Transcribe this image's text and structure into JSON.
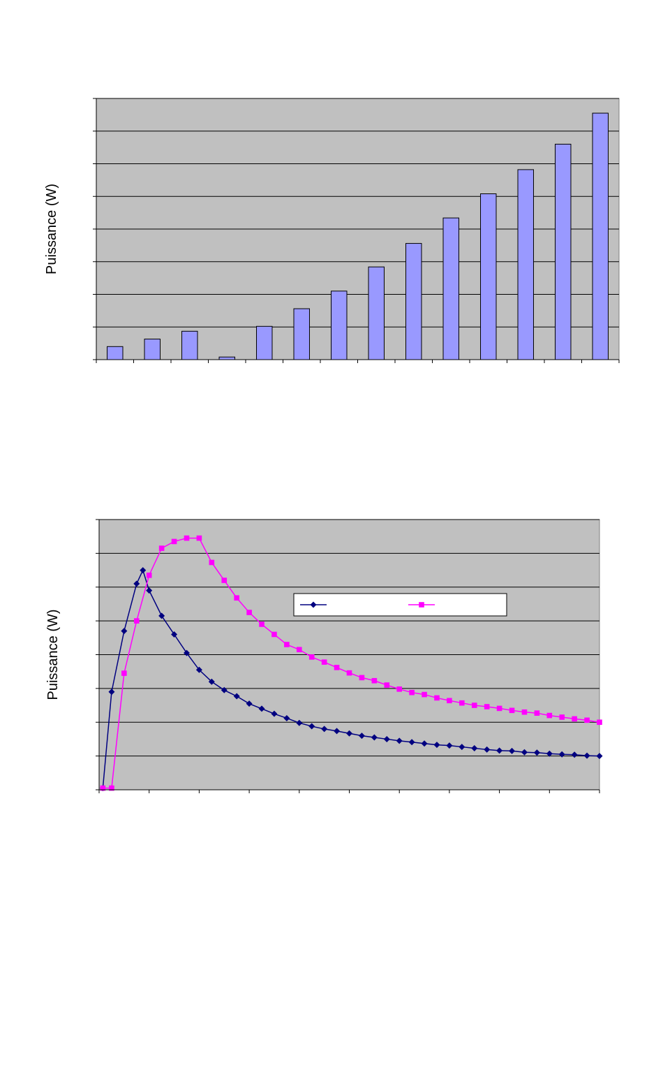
{
  "chart_data": [
    {
      "type": "bar",
      "ylabel": "Puissance (W)",
      "title": "",
      "xlabel": "",
      "ylim": [
        0,
        8
      ],
      "grid": true,
      "colors": {
        "plot_bg": "#c0c0c0",
        "bar": "#9999ff",
        "bar_edge": "#000000"
      },
      "values": [
        0.4,
        0.63,
        0.87,
        0.08,
        1.02,
        1.56,
        2.1,
        2.84,
        3.56,
        4.34,
        5.08,
        5.82,
        6.6,
        7.55
      ]
    },
    {
      "type": "line",
      "ylabel": "Puissance (W)",
      "title": "",
      "xlabel": "",
      "ylim": [
        0,
        8
      ],
      "xlim": [
        0,
        40
      ],
      "grid": true,
      "legend": "inside-top-right",
      "colors": {
        "plot_bg": "#c0c0c0"
      },
      "series": [
        {
          "name": "",
          "color": "#000080",
          "marker": "diamond",
          "x": [
            0.3,
            1,
            2,
            3,
            3.5,
            4,
            5,
            6,
            7,
            8,
            9,
            10,
            11,
            12,
            13,
            14,
            15,
            16,
            17,
            18,
            19,
            20,
            21,
            22,
            23,
            24,
            25,
            26,
            27,
            28,
            29,
            30,
            31,
            32,
            33,
            34,
            35,
            36,
            37,
            38,
            39,
            40
          ],
          "values": [
            0.05,
            2.9,
            4.7,
            6.1,
            6.5,
            5.9,
            5.15,
            4.6,
            4.05,
            3.55,
            3.2,
            2.95,
            2.77,
            2.55,
            2.4,
            2.25,
            2.12,
            1.98,
            1.88,
            1.8,
            1.74,
            1.67,
            1.6,
            1.55,
            1.5,
            1.45,
            1.41,
            1.37,
            1.33,
            1.31,
            1.27,
            1.23,
            1.19,
            1.16,
            1.15,
            1.11,
            1.1,
            1.07,
            1.05,
            1.04,
            1.01,
            1.0
          ]
        },
        {
          "name": "",
          "color": "#ff00ff",
          "marker": "square",
          "x": [
            0.3,
            1,
            2,
            3,
            4,
            5,
            6,
            7,
            8,
            9,
            10,
            11,
            12,
            13,
            14,
            15,
            16,
            17,
            18,
            19,
            20,
            21,
            22,
            23,
            24,
            25,
            26,
            27,
            28,
            29,
            30,
            31,
            32,
            33,
            34,
            35,
            36,
            37,
            38,
            39,
            40
          ],
          "values": [
            0.05,
            0.05,
            3.45,
            5.0,
            6.35,
            7.15,
            7.35,
            7.45,
            7.45,
            6.73,
            6.2,
            5.68,
            5.25,
            4.9,
            4.6,
            4.3,
            4.15,
            3.93,
            3.78,
            3.62,
            3.46,
            3.32,
            3.23,
            3.1,
            2.98,
            2.88,
            2.82,
            2.72,
            2.64,
            2.57,
            2.5,
            2.46,
            2.41,
            2.35,
            2.3,
            2.27,
            2.2,
            2.15,
            2.1,
            2.06,
            2.0
          ]
        }
      ]
    }
  ]
}
